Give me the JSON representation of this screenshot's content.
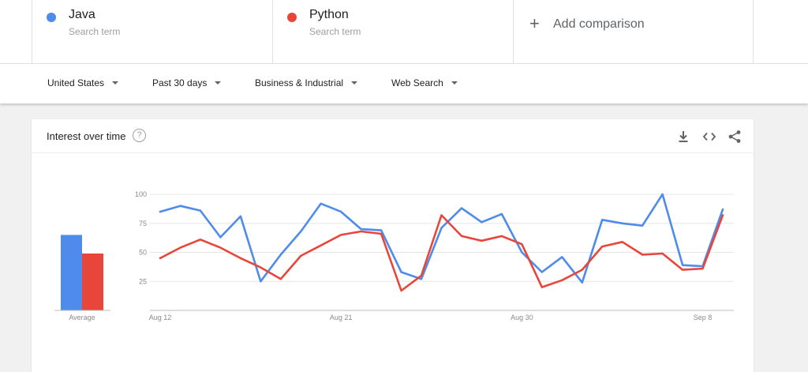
{
  "terms": [
    {
      "name": "Java",
      "subtitle": "Search term",
      "color": "#4f8bea"
    },
    {
      "name": "Python",
      "subtitle": "Search term",
      "color": "#e8463a"
    }
  ],
  "add_comparison": {
    "label": "Add comparison",
    "icon": "plus-icon"
  },
  "filters": [
    {
      "label": "United States",
      "icon": "caret-down-icon"
    },
    {
      "label": "Past 30 days",
      "icon": "caret-down-icon"
    },
    {
      "label": "Business & Industrial",
      "icon": "caret-down-icon"
    },
    {
      "label": "Web Search",
      "icon": "caret-down-icon"
    }
  ],
  "card": {
    "title": "Interest over time",
    "help_icon": "question-icon",
    "tools": [
      "download-icon",
      "embed-code-icon",
      "share-icon"
    ]
  },
  "chart_data": {
    "type": "line",
    "x": [
      "Aug 12",
      "Aug 13",
      "Aug 14",
      "Aug 15",
      "Aug 16",
      "Aug 17",
      "Aug 18",
      "Aug 19",
      "Aug 20",
      "Aug 21",
      "Aug 22",
      "Aug 23",
      "Aug 24",
      "Aug 25",
      "Aug 26",
      "Aug 27",
      "Aug 28",
      "Aug 29",
      "Aug 30",
      "Aug 31",
      "Sep 1",
      "Sep 2",
      "Sep 3",
      "Sep 4",
      "Sep 5",
      "Sep 6",
      "Sep 7",
      "Sep 8",
      "Sep 9"
    ],
    "x_tick_labels": [
      "Aug 12",
      "Aug 21",
      "Aug 30",
      "Sep 8"
    ],
    "y_ticks": [
      25,
      50,
      75,
      100
    ],
    "ylim": [
      0,
      100
    ],
    "grid": true,
    "series": [
      {
        "name": "Java",
        "color": "#4f8bea",
        "values": [
          85,
          90,
          86,
          63,
          81,
          25,
          48,
          68,
          92,
          85,
          70,
          69,
          33,
          27,
          71,
          88,
          76,
          83,
          50,
          33,
          46,
          24,
          78,
          75,
          73,
          100,
          39,
          38,
          87
        ]
      },
      {
        "name": "Python",
        "color": "#e8463a",
        "values": [
          45,
          54,
          61,
          54,
          45,
          37,
          27,
          47,
          56,
          65,
          68,
          66,
          17,
          30,
          82,
          64,
          60,
          64,
          57,
          20,
          26,
          35,
          55,
          59,
          48,
          49,
          35,
          36,
          82
        ]
      }
    ],
    "average": {
      "label": "Average",
      "values": [
        65,
        49
      ]
    }
  }
}
